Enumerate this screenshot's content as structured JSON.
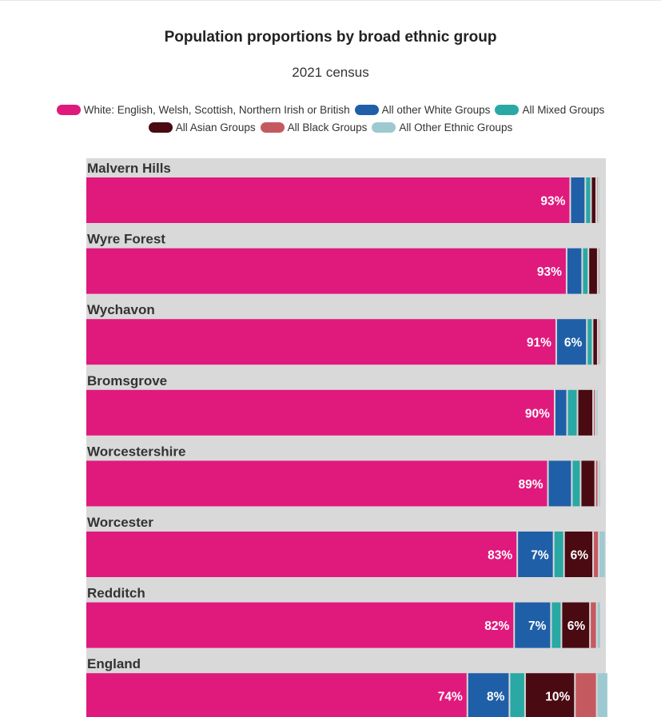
{
  "chart_data": {
    "type": "bar",
    "stacked": true,
    "orientation": "horizontal",
    "title": "Population proportions by broad ethnic group",
    "subtitle": "2021 census",
    "xlim": [
      0,
      100
    ],
    "legend_position": "top",
    "categories": [
      "Malvern Hills",
      "Wyre Forest",
      "Wychavon",
      "Bromsgrove",
      "Worcestershire",
      "Worcester",
      "Redditch",
      "England"
    ],
    "series": [
      {
        "name": "White: English, Welsh, Scottish, Northern Irish or British",
        "color": "#e0197d",
        "values": [
          93.3,
          92.6,
          90.6,
          90.3,
          89.0,
          83.1,
          82.5,
          73.5
        ]
      },
      {
        "name": "All other White Groups",
        "color": "#1f5fa8",
        "values": [
          2.9,
          3.0,
          5.9,
          2.4,
          4.6,
          7.0,
          7.1,
          8.1
        ]
      },
      {
        "name": "All Mixed Groups",
        "color": "#2aa8a4",
        "values": [
          1.1,
          1.2,
          1.1,
          2.0,
          1.7,
          2.0,
          2.0,
          3.0
        ]
      },
      {
        "name": "All Asian Groups",
        "color": "#4a0a12",
        "values": [
          1.0,
          1.8,
          1.0,
          3.0,
          2.8,
          5.6,
          5.5,
          9.6
        ]
      },
      {
        "name": "All Black Groups",
        "color": "#c45a60",
        "values": [
          0.3,
          0.2,
          0.3,
          0.5,
          0.6,
          1.1,
          1.3,
          4.2
        ]
      },
      {
        "name": "All Other Ethnic Groups",
        "color": "#9ccad0",
        "values": [
          0.4,
          0.3,
          0.4,
          0.5,
          0.5,
          1.3,
          0.8,
          2.2
        ]
      }
    ],
    "labels": [
      [
        "93%",
        "",
        "",
        "",
        "",
        ""
      ],
      [
        "93%",
        "",
        "",
        "",
        "",
        ""
      ],
      [
        "91%",
        "6%",
        "",
        "",
        "",
        ""
      ],
      [
        "90%",
        "",
        "",
        "",
        "",
        ""
      ],
      [
        "89%",
        "",
        "",
        "",
        "",
        ""
      ],
      [
        "83%",
        "7%",
        "",
        "6%",
        "",
        ""
      ],
      [
        "82%",
        "7%",
        "",
        "6%",
        "",
        ""
      ],
      [
        "74%",
        "8%",
        "",
        "10%",
        "",
        ""
      ]
    ]
  }
}
